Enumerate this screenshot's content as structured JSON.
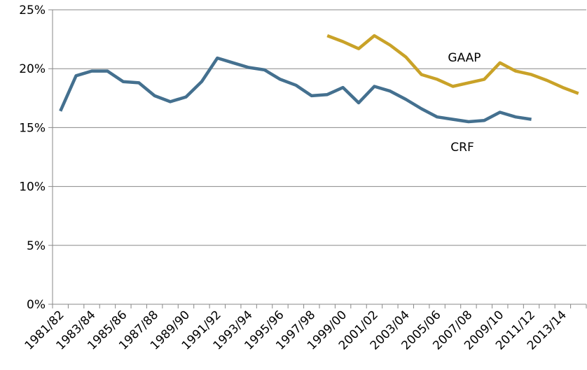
{
  "chart_data": {
    "type": "line",
    "categories": [
      "1981/82",
      null,
      "1983/84",
      null,
      "1985/86",
      null,
      "1987/88",
      null,
      "1989/90",
      null,
      "1991/92",
      null,
      "1993/94",
      null,
      "1995/96",
      null,
      "1997/98",
      null,
      "1999/00",
      null,
      "2001/02",
      null,
      "2003/04",
      null,
      "2005/06",
      null,
      "2007/08",
      null,
      "2009/10",
      null,
      "2011/12",
      null,
      "2013/14",
      null
    ],
    "series": [
      {
        "name": "CRF",
        "color": "#44708f",
        "values": [
          16.4,
          19.4,
          19.8,
          19.8,
          18.9,
          18.8,
          17.7,
          17.2,
          17.6,
          18.9,
          20.9,
          20.5,
          20.1,
          19.9,
          19.1,
          18.6,
          17.7,
          17.8,
          18.4,
          17.1,
          18.5,
          18.1,
          17.4,
          16.6,
          15.9,
          15.7,
          15.5,
          15.6,
          16.3,
          15.9,
          15.7,
          null,
          null,
          null
        ]
      },
      {
        "name": "GAAP",
        "color": "#c9a228",
        "values": [
          null,
          null,
          null,
          null,
          null,
          null,
          null,
          null,
          null,
          null,
          null,
          null,
          null,
          null,
          null,
          null,
          null,
          22.8,
          22.3,
          21.7,
          22.8,
          22.0,
          21.0,
          19.5,
          19.1,
          18.5,
          18.8,
          19.1,
          20.5,
          19.8,
          19.5,
          19.0,
          18.4,
          17.9
        ]
      }
    ],
    "ylim": [
      0,
      25
    ],
    "yticks": [
      {
        "value": 0,
        "label": "0%"
      },
      {
        "value": 5,
        "label": "5%"
      },
      {
        "value": 10,
        "label": "10%"
      },
      {
        "value": 15,
        "label": "15%"
      },
      {
        "value": 20,
        "label": "20%"
      },
      {
        "value": 25,
        "label": "25%"
      }
    ],
    "grid": true
  }
}
